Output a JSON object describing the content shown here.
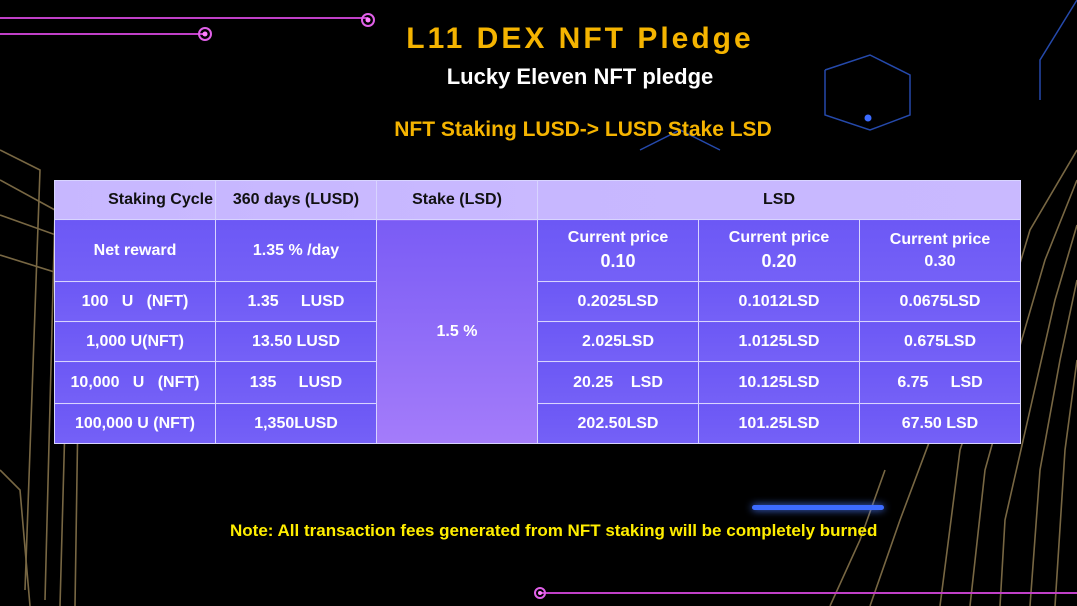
{
  "title": "L11 DEX NFT  Pledge",
  "subtitle": "Lucky Eleven NFT pledge",
  "heading": "NFT Staking LUSD-> LUSD Stake LSD",
  "note": "Note: All transaction fees generated from NFT staking will be completely burned",
  "colors": {
    "title": "#f5b400",
    "note": "#ffee00",
    "table_header": "#c7b7ff",
    "table_body": "#6c58f5"
  },
  "table": {
    "headers": {
      "staking_cycle": "Staking Cycle",
      "days": "360 days (LUSD)",
      "stake": "Stake (LSD)",
      "lsd": "LSD"
    },
    "net_reward": {
      "label": "Net reward",
      "value": "1.35 % /day",
      "stake_rate": "1.5 %",
      "price_label": "Current price",
      "prices": [
        "0.10",
        "0.20",
        "0.30"
      ]
    },
    "rows": [
      {
        "nft": "100   U   (NFT)",
        "lusd": "1.35     LUSD",
        "lsd": [
          "0.2025LSD",
          "0.1012LSD",
          "0.0675LSD"
        ]
      },
      {
        "nft": "1,000 U(NFT)",
        "lusd": "13.50 LUSD",
        "lsd": [
          "2.025LSD",
          "1.0125LSD",
          "0.675LSD"
        ]
      },
      {
        "nft": "10,000   U   (NFT)",
        "lusd": "135     LUSD",
        "lsd": [
          "20.25    LSD",
          "10.125LSD",
          "6.75     LSD"
        ]
      },
      {
        "nft": "100,000 U (NFT)",
        "lusd": "1,350LUSD",
        "lsd": [
          "202.50LSD",
          "101.25LSD",
          "67.50 LSD"
        ]
      }
    ]
  }
}
